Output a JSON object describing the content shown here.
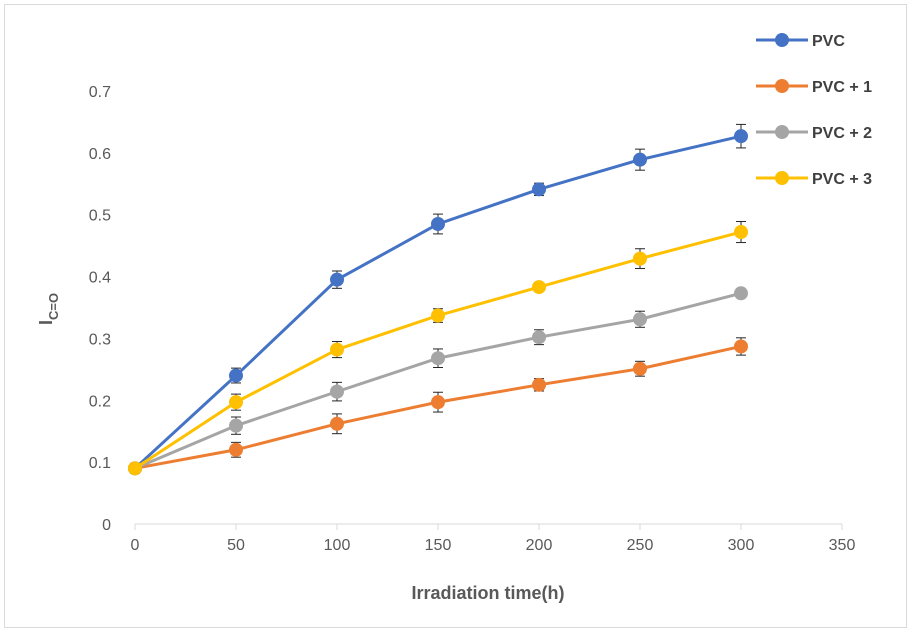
{
  "chart_data": {
    "type": "line",
    "xlabel": "Irradiation time(h)",
    "ylabel_main": "I",
    "ylabel_sub": "C=O",
    "xlim": [
      0,
      350
    ],
    "ylim": [
      0,
      0.7
    ],
    "xticks": [
      0,
      50,
      100,
      150,
      200,
      250,
      300,
      350
    ],
    "yticks": [
      0,
      0.1,
      0.2,
      0.3,
      0.4,
      0.5,
      0.6,
      0.7
    ],
    "x": [
      0,
      50,
      100,
      150,
      200,
      250,
      300
    ],
    "grid": false,
    "error_bars": true,
    "legend_position": "top-right",
    "series": [
      {
        "name": "PVC",
        "color": "#4472c4",
        "values": [
          0.09,
          0.24,
          0.395,
          0.485,
          0.541,
          0.589,
          0.627
        ],
        "errors": [
          0.008,
          0.012,
          0.014,
          0.016,
          0.01,
          0.017,
          0.019
        ]
      },
      {
        "name": "PVC + 1",
        "color": "#ed7d31",
        "values": [
          0.09,
          0.12,
          0.162,
          0.197,
          0.225,
          0.251,
          0.287
        ],
        "errors": [
          0.006,
          0.012,
          0.016,
          0.016,
          0.01,
          0.012,
          0.014
        ]
      },
      {
        "name": "PVC + 2",
        "color": "#a5a5a5",
        "values": [
          0.09,
          0.159,
          0.214,
          0.268,
          0.302,
          0.331,
          0.373
        ],
        "errors": [
          0.006,
          0.014,
          0.015,
          0.015,
          0.012,
          0.013,
          0.006
        ]
      },
      {
        "name": "PVC + 3",
        "color": "#ffc000",
        "values": [
          0.09,
          0.197,
          0.282,
          0.337,
          0.383,
          0.429,
          0.472
        ],
        "errors": [
          0.006,
          0.013,
          0.013,
          0.011,
          0.007,
          0.016,
          0.017
        ]
      }
    ]
  }
}
